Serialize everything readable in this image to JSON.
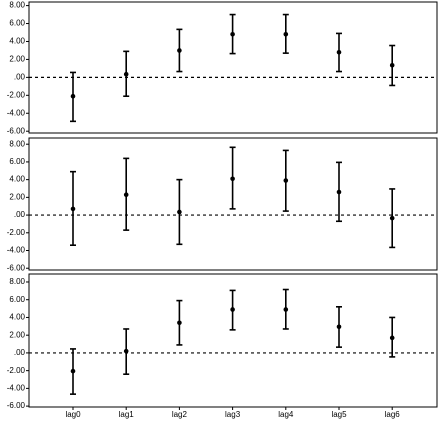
{
  "chart_data": [
    {
      "type": "errorbar",
      "color": "#000000",
      "values": [
        -2.1,
        0.35,
        3.0,
        4.8,
        4.8,
        2.8,
        1.35
      ],
      "lower": [
        -4.9,
        -2.1,
        0.65,
        2.65,
        2.7,
        0.65,
        -0.9
      ],
      "upper": [
        0.55,
        2.9,
        5.35,
        7.0,
        7.0,
        4.9,
        3.55
      ],
      "reference_line": 0,
      "ylim": [
        -6.2,
        8.4
      ],
      "yticks": [
        {
          "value": 8,
          "label": "8.00"
        },
        {
          "value": 6,
          "label": "6.00"
        },
        {
          "value": 4,
          "label": "4.00"
        },
        {
          "value": 2,
          "label": "2.00"
        },
        {
          "value": 0,
          "label": ".00"
        },
        {
          "value": -2,
          "label": "-2.00"
        },
        {
          "value": -4,
          "label": "-4.00"
        },
        {
          "value": -6,
          "label": "-6.00"
        }
      ]
    },
    {
      "type": "errorbar",
      "color": "#000000",
      "values": [
        0.7,
        2.3,
        0.35,
        4.1,
        3.9,
        2.6,
        -0.35
      ],
      "lower": [
        -3.4,
        -1.7,
        -3.3,
        0.7,
        0.45,
        -0.7,
        -3.65
      ],
      "upper": [
        4.9,
        6.4,
        4.0,
        7.65,
        7.3,
        5.95,
        2.95
      ],
      "reference_line": 0,
      "ylim": [
        -6.2,
        8.7
      ],
      "yticks": [
        {
          "value": 8,
          "label": "8.00"
        },
        {
          "value": 6,
          "label": "6.00"
        },
        {
          "value": 4,
          "label": "4.00"
        },
        {
          "value": 2,
          "label": "2.00"
        },
        {
          "value": 0,
          "label": ".00"
        },
        {
          "value": -2,
          "label": "-2.00"
        },
        {
          "value": -4,
          "label": "-4.00"
        },
        {
          "value": -6,
          "label": "-6.00"
        }
      ]
    },
    {
      "type": "errorbar",
      "color": "#000000",
      "categories": [
        "lag0",
        "lag1",
        "lag2",
        "lag3",
        "lag4",
        "lag5",
        "lag6"
      ],
      "values": [
        -2.05,
        0.2,
        3.4,
        4.9,
        4.9,
        2.95,
        1.7
      ],
      "lower": [
        -4.65,
        -2.4,
        0.9,
        2.6,
        2.7,
        0.65,
        -0.45
      ],
      "upper": [
        0.45,
        2.7,
        5.9,
        7.05,
        7.15,
        5.2,
        4.0
      ],
      "reference_line": 0,
      "ylim": [
        -6.1,
        8.9
      ],
      "yticks": [
        {
          "value": 8,
          "label": "8.00"
        },
        {
          "value": 6,
          "label": "6.00"
        },
        {
          "value": 4,
          "label": "4.00"
        },
        {
          "value": 2,
          "label": "2.00"
        },
        {
          "value": 0,
          "label": ".00"
        },
        {
          "value": -2,
          "label": "-2.00"
        },
        {
          "value": -4,
          "label": "-4.00"
        },
        {
          "value": -6,
          "label": "-6.00"
        }
      ]
    }
  ]
}
